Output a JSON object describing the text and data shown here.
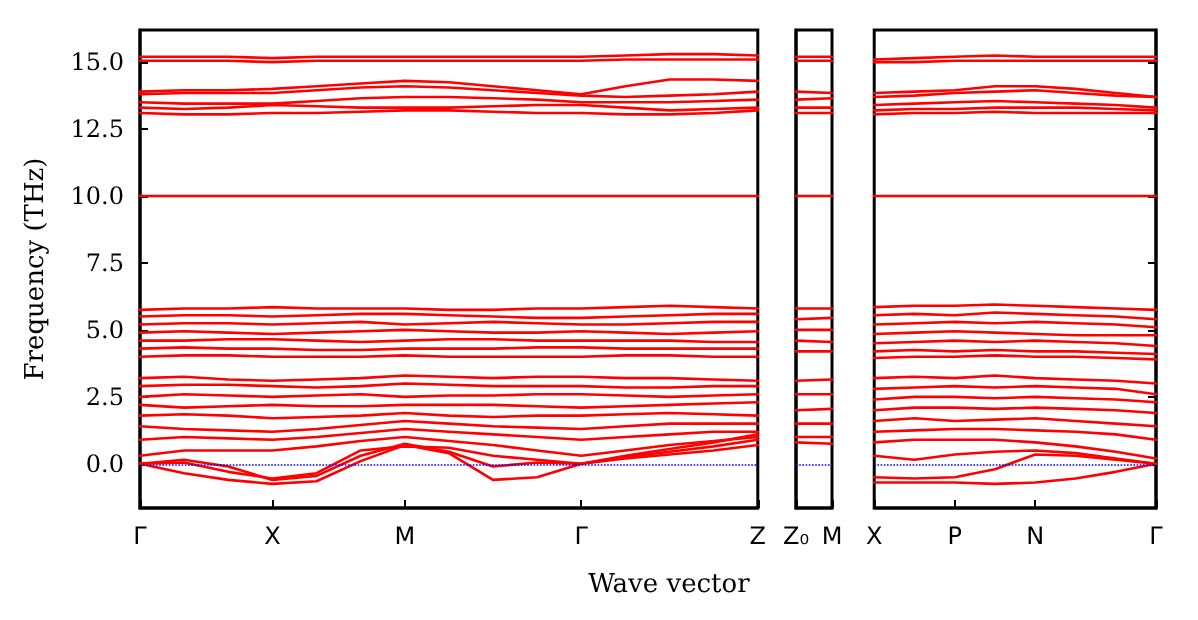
{
  "chart_data": [
    {
      "type": "line",
      "ylabel": "Frequency (THz)",
      "xlabel": "Wave vector",
      "marker": "none",
      "line_style": "solid",
      "categories": [
        "Γ",
        null,
        null,
        "X",
        null,
        null,
        "M",
        null,
        null,
        null,
        "Γ",
        null,
        null,
        null,
        "Z"
      ],
      "ylim": [
        -1.65,
        16.2
      ],
      "yticks": [
        {
          "value": 0,
          "label": "0.0"
        },
        {
          "value": 2.5,
          "label": "2.5"
        },
        {
          "value": 5,
          "label": "5.0"
        },
        {
          "value": 7.5,
          "label": "7.5"
        },
        {
          "value": 10,
          "label": "10.0"
        },
        {
          "value": 12.5,
          "label": "12.5"
        },
        {
          "value": 15,
          "label": "15.0"
        }
      ],
      "ref_lines": [
        {
          "axis": "y",
          "value": 0,
          "color": "#0000ff",
          "line_style": "dotted"
        }
      ],
      "series": [
        {
          "color": "#ff0000",
          "values": [
            15.2,
            15.2,
            15.2,
            15.15,
            15.2,
            15.2,
            15.2,
            15.2,
            15.2,
            15.2,
            15.2,
            15.25,
            15.3,
            15.3,
            15.25
          ]
        },
        {
          "color": "#ff0000",
          "values": [
            15.05,
            15.05,
            15.05,
            15.0,
            15.05,
            15.05,
            15.05,
            15.05,
            15.05,
            15.05,
            15.05,
            15.1,
            15.1,
            15.1,
            15.1
          ]
        },
        {
          "color": "#ff0000",
          "values": [
            13.9,
            13.95,
            13.95,
            14.0,
            14.1,
            14.2,
            14.3,
            14.25,
            14.1,
            13.95,
            13.8,
            14.1,
            14.35,
            14.35,
            14.3
          ]
        },
        {
          "color": "#ff0000",
          "values": [
            13.8,
            13.85,
            13.85,
            13.85,
            13.95,
            14.05,
            14.1,
            14.05,
            13.95,
            13.85,
            13.75,
            13.7,
            13.75,
            13.8,
            13.9
          ]
        },
        {
          "color": "#ff0000",
          "values": [
            13.5,
            13.45,
            13.45,
            13.45,
            13.55,
            13.65,
            13.7,
            13.7,
            13.65,
            13.6,
            13.5,
            13.5,
            13.5,
            13.55,
            13.6
          ]
        },
        {
          "color": "#ff0000",
          "values": [
            13.3,
            13.25,
            13.3,
            13.4,
            13.35,
            13.3,
            13.3,
            13.3,
            13.35,
            13.4,
            13.4,
            13.3,
            13.2,
            13.25,
            13.3
          ]
        },
        {
          "color": "#ff0000",
          "values": [
            13.1,
            13.05,
            13.05,
            13.1,
            13.1,
            13.15,
            13.2,
            13.2,
            13.15,
            13.1,
            13.1,
            13.05,
            13.05,
            13.1,
            13.2
          ]
        },
        {
          "color": "#ff0000",
          "values": [
            10.0,
            10.0,
            10.0,
            10.0,
            10.0,
            10.0,
            10.0,
            10.0,
            10.0,
            10.0,
            10.0,
            10.0,
            10.0,
            10.0,
            10.0
          ]
        },
        {
          "color": "#ff0000",
          "values": [
            5.75,
            5.8,
            5.8,
            5.85,
            5.8,
            5.8,
            5.8,
            5.75,
            5.75,
            5.8,
            5.8,
            5.85,
            5.9,
            5.85,
            5.8
          ]
        },
        {
          "color": "#ff0000",
          "values": [
            5.5,
            5.55,
            5.55,
            5.5,
            5.55,
            5.6,
            5.6,
            5.55,
            5.5,
            5.45,
            5.45,
            5.5,
            5.55,
            5.6,
            5.6
          ]
        },
        {
          "color": "#ff0000",
          "values": [
            5.2,
            5.25,
            5.25,
            5.2,
            5.25,
            5.3,
            5.2,
            5.25,
            5.3,
            5.25,
            5.2,
            5.2,
            5.25,
            5.3,
            5.3
          ]
        },
        {
          "color": "#ff0000",
          "values": [
            4.9,
            4.95,
            4.9,
            4.85,
            4.9,
            4.95,
            5.0,
            4.95,
            4.9,
            4.9,
            4.95,
            4.9,
            4.85,
            4.9,
            4.95
          ]
        },
        {
          "color": "#ff0000",
          "values": [
            4.6,
            4.6,
            4.65,
            4.65,
            4.6,
            4.55,
            4.6,
            4.65,
            4.65,
            4.6,
            4.6,
            4.6,
            4.6,
            4.55,
            4.55
          ]
        },
        {
          "color": "#ff0000",
          "values": [
            4.3,
            4.35,
            4.3,
            4.3,
            4.25,
            4.25,
            4.3,
            4.3,
            4.3,
            4.35,
            4.35,
            4.3,
            4.3,
            4.3,
            4.3
          ]
        },
        {
          "color": "#ff0000",
          "values": [
            4.0,
            4.05,
            4.05,
            4.0,
            4.0,
            4.0,
            4.05,
            4.0,
            4.0,
            4.0,
            4.0,
            4.05,
            4.05,
            4.0,
            4.0
          ]
        },
        {
          "color": "#ff0000",
          "values": [
            3.2,
            3.25,
            3.15,
            3.1,
            3.15,
            3.2,
            3.3,
            3.25,
            3.2,
            3.25,
            3.25,
            3.2,
            3.2,
            3.15,
            3.1
          ]
        },
        {
          "color": "#ff0000",
          "values": [
            2.9,
            2.95,
            2.95,
            2.9,
            2.85,
            2.9,
            3.0,
            2.95,
            2.9,
            2.9,
            2.9,
            2.85,
            2.85,
            2.9,
            2.9
          ]
        },
        {
          "color": "#ff0000",
          "values": [
            2.5,
            2.6,
            2.55,
            2.5,
            2.55,
            2.6,
            2.5,
            2.55,
            2.55,
            2.6,
            2.6,
            2.55,
            2.5,
            2.55,
            2.6
          ]
        },
        {
          "color": "#ff0000",
          "values": [
            2.2,
            2.1,
            2.15,
            2.2,
            2.15,
            2.15,
            2.2,
            2.2,
            2.2,
            2.15,
            2.1,
            2.15,
            2.2,
            2.25,
            2.3
          ]
        },
        {
          "color": "#ff0000",
          "values": [
            1.8,
            1.85,
            1.8,
            1.7,
            1.75,
            1.8,
            1.9,
            1.8,
            1.75,
            1.8,
            1.8,
            1.85,
            1.9,
            1.85,
            1.8
          ]
        },
        {
          "color": "#ff0000",
          "values": [
            1.4,
            1.3,
            1.25,
            1.2,
            1.3,
            1.45,
            1.6,
            1.5,
            1.4,
            1.35,
            1.3,
            1.4,
            1.5,
            1.5,
            1.5
          ]
        },
        {
          "color": "#ff0000",
          "values": [
            0.9,
            1.0,
            0.95,
            0.9,
            1.0,
            1.15,
            1.3,
            1.2,
            1.1,
            1.0,
            0.9,
            1.0,
            1.1,
            1.2,
            1.2
          ]
        },
        {
          "color": "#ff0000",
          "values": [
            0.3,
            0.5,
            0.5,
            0.5,
            0.65,
            0.85,
            1.0,
            0.85,
            0.7,
            0.5,
            0.3,
            0.5,
            0.7,
            0.85,
            1.0
          ]
        },
        {
          "color": "#ff0000",
          "values": [
            0,
            -0.35,
            -0.6,
            -0.75,
            -0.65,
            0.1,
            0.7,
            0.4,
            -0.6,
            -0.5,
            0,
            0.2,
            0.35,
            0.5,
            0.7
          ]
        },
        {
          "color": "#ff0000",
          "values": [
            0,
            0.15,
            -0.1,
            -0.6,
            -0.45,
            0.3,
            0.75,
            0.45,
            -0.1,
            0.05,
            0,
            0.25,
            0.45,
            0.65,
            0.9
          ]
        },
        {
          "color": "#ff0000",
          "values": [
            0,
            0.05,
            -0.3,
            -0.55,
            -0.35,
            0.5,
            0.65,
            0.6,
            0.3,
            0.15,
            0,
            0.3,
            0.55,
            0.8,
            1.1
          ]
        }
      ]
    },
    {
      "type": "line",
      "marker": "none",
      "line_style": "solid",
      "tick_labels": "x",
      "categories": [
        "Z₀",
        "M"
      ],
      "ylim": [
        -1.65,
        16.2
      ],
      "ref_lines": [
        {
          "axis": "y",
          "value": 0,
          "color": "#0000ff",
          "line_style": "dotted"
        }
      ],
      "series": [
        {
          "color": "#ff0000",
          "values": [
            15.2,
            15.2
          ]
        },
        {
          "color": "#ff0000",
          "values": [
            15.05,
            15.05
          ]
        },
        {
          "color": "#ff0000",
          "values": [
            13.9,
            13.85
          ]
        },
        {
          "color": "#ff0000",
          "values": [
            13.6,
            13.65
          ]
        },
        {
          "color": "#ff0000",
          "values": [
            13.3,
            13.3
          ]
        },
        {
          "color": "#ff0000",
          "values": [
            13.1,
            13.1
          ]
        },
        {
          "color": "#ff0000",
          "values": [
            10.0,
            10.0
          ]
        },
        {
          "color": "#ff0000",
          "values": [
            5.8,
            5.8
          ]
        },
        {
          "color": "#ff0000",
          "values": [
            5.4,
            5.45
          ]
        },
        {
          "color": "#ff0000",
          "values": [
            5.0,
            5.0
          ]
        },
        {
          "color": "#ff0000",
          "values": [
            4.6,
            4.55
          ]
        },
        {
          "color": "#ff0000",
          "values": [
            4.2,
            4.2
          ]
        },
        {
          "color": "#ff0000",
          "values": [
            3.1,
            3.15
          ]
        },
        {
          "color": "#ff0000",
          "values": [
            2.6,
            2.6
          ]
        },
        {
          "color": "#ff0000",
          "values": [
            2.0,
            2.05
          ]
        },
        {
          "color": "#ff0000",
          "values": [
            1.5,
            1.5
          ]
        },
        {
          "color": "#ff0000",
          "values": [
            1.0,
            1.0
          ]
        },
        {
          "color": "#ff0000",
          "values": [
            0.8,
            0.75
          ]
        }
      ]
    },
    {
      "type": "line",
      "marker": "none",
      "line_style": "solid",
      "tick_labels": "x",
      "categories": [
        "X",
        null,
        "P",
        null,
        "N",
        null,
        null,
        "Γ"
      ],
      "ylim": [
        -1.65,
        16.2
      ],
      "yticks": [
        {
          "value": 0,
          "label": null
        },
        {
          "value": 2.5,
          "label": null
        },
        {
          "value": 5,
          "label": null
        },
        {
          "value": 7.5,
          "label": null
        },
        {
          "value": 10,
          "label": null
        },
        {
          "value": 12.5,
          "label": null
        },
        {
          "value": 15,
          "label": null
        }
      ],
      "ref_lines": [
        {
          "axis": "y",
          "value": 0,
          "color": "#0000ff",
          "line_style": "dotted"
        }
      ],
      "series": [
        {
          "color": "#ff0000",
          "values": [
            15.1,
            15.15,
            15.2,
            15.25,
            15.2,
            15.2,
            15.2,
            15.2
          ]
        },
        {
          "color": "#ff0000",
          "values": [
            15.0,
            15.0,
            15.05,
            15.05,
            15.05,
            15.05,
            15.05,
            15.05
          ]
        },
        {
          "color": "#ff0000",
          "values": [
            13.85,
            13.9,
            13.95,
            14.1,
            14.1,
            14.0,
            13.85,
            13.7
          ]
        },
        {
          "color": "#ff0000",
          "values": [
            13.7,
            13.75,
            13.85,
            13.9,
            13.95,
            13.85,
            13.75,
            13.7
          ]
        },
        {
          "color": "#ff0000",
          "values": [
            13.4,
            13.45,
            13.5,
            13.55,
            13.5,
            13.45,
            13.4,
            13.3
          ]
        },
        {
          "color": "#ff0000",
          "values": [
            13.2,
            13.25,
            13.25,
            13.3,
            13.3,
            13.3,
            13.25,
            13.2
          ]
        },
        {
          "color": "#ff0000",
          "values": [
            13.05,
            13.1,
            13.1,
            13.15,
            13.1,
            13.1,
            13.1,
            13.1
          ]
        },
        {
          "color": "#ff0000",
          "values": [
            10.0,
            10.0,
            10.0,
            10.0,
            10.0,
            10.0,
            10.0,
            10.0
          ]
        },
        {
          "color": "#ff0000",
          "values": [
            5.85,
            5.9,
            5.9,
            5.95,
            5.9,
            5.85,
            5.8,
            5.75
          ]
        },
        {
          "color": "#ff0000",
          "values": [
            5.55,
            5.6,
            5.55,
            5.65,
            5.6,
            5.55,
            5.5,
            5.4
          ]
        },
        {
          "color": "#ff0000",
          "values": [
            5.2,
            5.25,
            5.3,
            5.25,
            5.3,
            5.25,
            5.2,
            5.1
          ]
        },
        {
          "color": "#ff0000",
          "values": [
            4.85,
            4.9,
            4.95,
            4.9,
            4.85,
            4.8,
            4.8,
            4.8
          ]
        },
        {
          "color": "#ff0000",
          "values": [
            4.5,
            4.55,
            4.6,
            4.55,
            4.6,
            4.55,
            4.5,
            4.4
          ]
        },
        {
          "color": "#ff0000",
          "values": [
            4.2,
            4.25,
            4.2,
            4.25,
            4.2,
            4.2,
            4.15,
            4.1
          ]
        },
        {
          "color": "#ff0000",
          "values": [
            3.95,
            4.0,
            4.0,
            4.05,
            4.0,
            4.0,
            3.95,
            3.9
          ]
        },
        {
          "color": "#ff0000",
          "values": [
            3.2,
            3.25,
            3.2,
            3.3,
            3.2,
            3.15,
            3.1,
            3.0
          ]
        },
        {
          "color": "#ff0000",
          "values": [
            2.8,
            2.85,
            2.9,
            2.85,
            2.9,
            2.85,
            2.8,
            2.6
          ]
        },
        {
          "color": "#ff0000",
          "values": [
            2.4,
            2.5,
            2.5,
            2.45,
            2.5,
            2.45,
            2.4,
            2.3
          ]
        },
        {
          "color": "#ff0000",
          "values": [
            2.0,
            2.1,
            2.1,
            2.05,
            2.1,
            2.05,
            2.0,
            1.9
          ]
        },
        {
          "color": "#ff0000",
          "values": [
            1.6,
            1.7,
            1.6,
            1.65,
            1.7,
            1.6,
            1.5,
            1.4
          ]
        },
        {
          "color": "#ff0000",
          "values": [
            1.2,
            1.25,
            1.3,
            1.3,
            1.25,
            1.2,
            1.1,
            0.9
          ]
        },
        {
          "color": "#ff0000",
          "values": [
            0.8,
            0.9,
            0.9,
            0.9,
            0.8,
            0.65,
            0.45,
            0.2
          ]
        },
        {
          "color": "#ff0000",
          "values": [
            -0.5,
            -0.55,
            -0.5,
            -0.2,
            0.35,
            0.3,
            0.15,
            0
          ]
        },
        {
          "color": "#ff0000",
          "values": [
            -0.7,
            -0.7,
            -0.7,
            -0.75,
            -0.7,
            -0.55,
            -0.3,
            0
          ]
        },
        {
          "color": "#ff0000",
          "values": [
            0.3,
            0.15,
            0.35,
            0.45,
            0.5,
            0.4,
            0.2,
            0
          ]
        }
      ]
    }
  ]
}
